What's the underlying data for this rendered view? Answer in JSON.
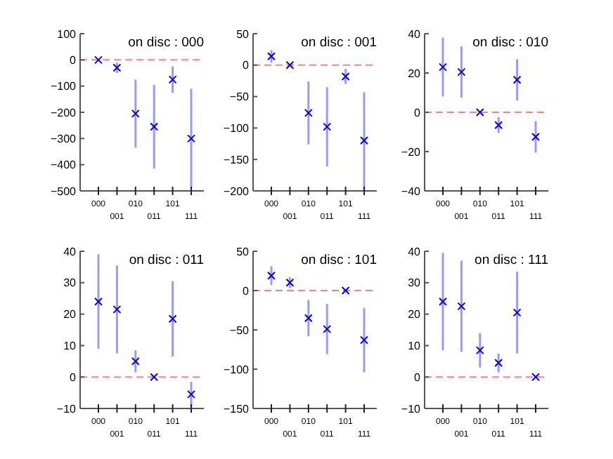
{
  "chart_data": [
    {
      "type": "scatter",
      "title": "on disc : 000",
      "categories": [
        "000",
        "001",
        "010",
        "011",
        "101",
        "111"
      ],
      "series": [
        {
          "color": "#0000ff",
          "values": [
            0,
            -30,
            -205,
            -255,
            -75,
            -300
          ],
          "errors": [
            5,
            20,
            130,
            160,
            50,
            190
          ]
        }
      ],
      "ylim": [
        -500,
        100
      ],
      "yticks": [
        -500,
        -400,
        -300,
        -200,
        -100,
        0,
        100
      ],
      "marker": "cross",
      "ref_lines": [
        {
          "axis": "y",
          "value": 0,
          "color": "#ff8080",
          "line_style": "dashed"
        }
      ]
    },
    {
      "type": "scatter",
      "title": "on disc : 001",
      "categories": [
        "000",
        "001",
        "010",
        "011",
        "101",
        "111"
      ],
      "series": [
        {
          "color": "#0000ff",
          "values": [
            14,
            0,
            -76,
            -98,
            -18,
            -120
          ],
          "errors": [
            10,
            2,
            50,
            63,
            12,
            77
          ]
        }
      ],
      "ylim": [
        -200,
        50
      ],
      "yticks": [
        -200,
        -150,
        -100,
        -50,
        0,
        50
      ],
      "marker": "cross",
      "ref_lines": [
        {
          "axis": "y",
          "value": 0,
          "color": "#ff8080",
          "line_style": "dashed"
        }
      ]
    },
    {
      "type": "scatter",
      "title": "on disc : 010",
      "categories": [
        "000",
        "001",
        "010",
        "011",
        "101",
        "111"
      ],
      "series": [
        {
          "color": "#0000ff",
          "values": [
            23,
            20.5,
            0,
            -6.5,
            16.5,
            -12.5
          ],
          "errors": [
            15,
            13,
            0.5,
            4,
            10.5,
            8
          ]
        }
      ],
      "ylim": [
        -40,
        40
      ],
      "yticks": [
        -40,
        -20,
        0,
        20,
        40
      ],
      "marker": "cross",
      "ref_lines": [
        {
          "axis": "y",
          "value": 0,
          "color": "#ff8080",
          "line_style": "dashed"
        }
      ]
    },
    {
      "type": "scatter",
      "title": "on disc : 011",
      "categories": [
        "000",
        "001",
        "010",
        "011",
        "101",
        "111"
      ],
      "series": [
        {
          "color": "#0000ff",
          "values": [
            24,
            21.5,
            5,
            0,
            18.5,
            -5.5
          ],
          "errors": [
            15,
            14,
            3.5,
            0.3,
            12,
            4
          ]
        }
      ],
      "ylim": [
        -10,
        40
      ],
      "yticks": [
        -10,
        0,
        10,
        20,
        30,
        40
      ],
      "marker": "cross",
      "ref_lines": [
        {
          "axis": "y",
          "value": 0,
          "color": "#ff8080",
          "line_style": "dashed"
        }
      ]
    },
    {
      "type": "scatter",
      "title": "on disc : 101",
      "categories": [
        "000",
        "001",
        "010",
        "011",
        "101",
        "111"
      ],
      "series": [
        {
          "color": "#0000ff",
          "values": [
            19,
            10,
            -35,
            -49,
            0,
            -63
          ],
          "errors": [
            12,
            7,
            23,
            32,
            1,
            41
          ]
        }
      ],
      "ylim": [
        -150,
        50
      ],
      "yticks": [
        -150,
        -100,
        -50,
        0,
        50
      ],
      "marker": "cross",
      "ref_lines": [
        {
          "axis": "y",
          "value": 0,
          "color": "#ff8080",
          "line_style": "dashed"
        }
      ]
    },
    {
      "type": "scatter",
      "title": "on disc : 111",
      "categories": [
        "000",
        "001",
        "010",
        "011",
        "101",
        "111"
      ],
      "series": [
        {
          "color": "#0000ff",
          "values": [
            24,
            22.5,
            8.5,
            4.5,
            20.5,
            0
          ],
          "errors": [
            15.5,
            14.5,
            5.5,
            3,
            13,
            0.3
          ]
        }
      ],
      "ylim": [
        -10,
        40
      ],
      "yticks": [
        -10,
        0,
        10,
        20,
        30,
        40
      ],
      "marker": "cross",
      "ref_lines": [
        {
          "axis": "y",
          "value": 0,
          "color": "#ff8080",
          "line_style": "dashed"
        }
      ]
    }
  ]
}
